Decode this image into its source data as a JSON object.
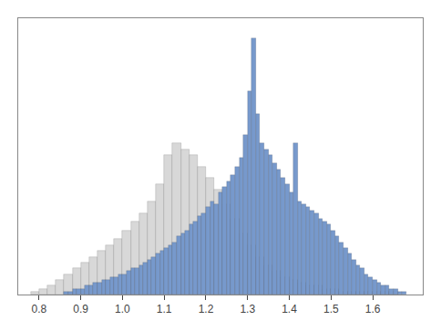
{
  "chart_data": {
    "type": "histogram",
    "series": [
      {
        "color": "#d8d8d8",
        "bins": [
          0.78,
          0.8,
          0.82,
          0.84,
          0.86,
          0.88,
          0.9,
          0.92,
          0.94,
          0.96,
          0.98,
          1.0,
          1.02,
          1.04,
          1.06,
          1.08,
          1.1,
          1.12,
          1.14,
          1.16,
          1.18,
          1.2,
          1.22,
          1.24,
          1.26,
          1.28,
          1.3,
          1.32,
          1.34,
          1.36,
          1.38,
          1.4,
          1.42,
          1.44,
          1.46,
          1.48,
          1.5,
          1.52,
          1.54,
          1.56,
          1.58,
          1.6,
          1.62,
          1.64,
          1.66
        ],
        "values": [
          1,
          2,
          3,
          5,
          7,
          9,
          11,
          13,
          15,
          17,
          19,
          22,
          25,
          28,
          32,
          38,
          48,
          52,
          50,
          48,
          44,
          40,
          36,
          31,
          26,
          21,
          17,
          13,
          10,
          8,
          6,
          5,
          4,
          3,
          3,
          2,
          2,
          1,
          1,
          1,
          1,
          1,
          1,
          1
        ]
      },
      {
        "color": "#7799cc",
        "bins": [
          0.86,
          0.87,
          0.88,
          0.89,
          0.9,
          0.91,
          0.92,
          0.93,
          0.94,
          0.95,
          0.96,
          0.97,
          0.98,
          0.99,
          1.0,
          1.01,
          1.02,
          1.03,
          1.04,
          1.05,
          1.06,
          1.07,
          1.08,
          1.09,
          1.1,
          1.11,
          1.12,
          1.13,
          1.14,
          1.15,
          1.16,
          1.17,
          1.18,
          1.19,
          1.2,
          1.21,
          1.22,
          1.23,
          1.24,
          1.25,
          1.26,
          1.27,
          1.28,
          1.29,
          1.3,
          1.31,
          1.32,
          1.33,
          1.34,
          1.35,
          1.36,
          1.37,
          1.38,
          1.39,
          1.4,
          1.41,
          1.42,
          1.43,
          1.44,
          1.45,
          1.46,
          1.47,
          1.48,
          1.49,
          1.5,
          1.51,
          1.52,
          1.53,
          1.54,
          1.55,
          1.56,
          1.57,
          1.58,
          1.59,
          1.6,
          1.61,
          1.62,
          1.63,
          1.64,
          1.65,
          1.66,
          1.67,
          1.68
        ],
        "values": [
          1,
          1,
          2,
          2,
          2,
          3,
          3,
          4,
          4,
          5,
          5,
          6,
          6,
          7,
          7,
          8,
          9,
          9,
          10,
          11,
          12,
          13,
          14,
          15,
          16,
          17,
          18,
          20,
          21,
          22,
          24,
          25,
          27,
          28,
          30,
          32,
          31,
          35,
          37,
          39,
          41,
          44,
          47,
          55,
          70,
          88,
          62,
          52,
          50,
          48,
          45,
          43,
          40,
          38,
          35,
          52,
          32,
          31,
          30,
          29,
          28,
          26,
          25,
          24,
          22,
          20,
          18,
          16,
          14,
          12,
          10,
          9,
          7,
          6,
          5,
          4,
          3,
          3,
          2,
          2,
          1,
          1
        ]
      }
    ],
    "xlim": [
      0.75,
      1.72
    ],
    "xticks": [
      0.8,
      0.9,
      {
        "value": 1.0,
        "label": "1.0"
      },
      1.1,
      1.2,
      1.3,
      1.4,
      1.5,
      1.6
    ],
    "ylim": [
      0,
      95
    ],
    "yticks": [],
    "tick_labels": "x",
    "grid": false
  }
}
